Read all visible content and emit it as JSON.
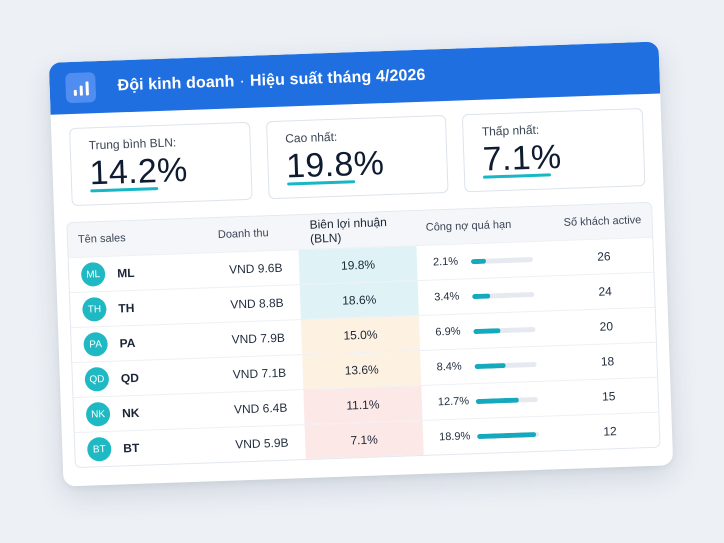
{
  "header": {
    "team": "Đội kinh doanh",
    "separator": "·",
    "period": "Hiệu suất tháng 4/2026",
    "icon": "bar-chart-icon"
  },
  "stats": [
    {
      "label": "Trung bình BLN:",
      "value": "14.2%"
    },
    {
      "label": "Cao nhất:",
      "value": "19.8%"
    },
    {
      "label": "Thấp nhất:",
      "value": "7.1%"
    }
  ],
  "table": {
    "columns": [
      "Tên sales",
      "Doanh thu",
      "Biên lợi nhuận (BLN)",
      "Công nợ quá hạn",
      "Số khách active"
    ],
    "rows": [
      {
        "initials": "ML",
        "name": "ML",
        "revenue": "VND 9.6B",
        "margin": "19.8%",
        "margin_bg": "#dff3f6",
        "overdue": "2.1%",
        "overdue_pct": 2.1,
        "customers": "26"
      },
      {
        "initials": "TH",
        "name": "TH",
        "revenue": "VND 8.8B",
        "margin": "18.6%",
        "margin_bg": "#dff3f6",
        "overdue": "3.4%",
        "overdue_pct": 3.4,
        "customers": "24"
      },
      {
        "initials": "PA",
        "name": "PA",
        "revenue": "VND 7.9B",
        "margin": "15.0%",
        "margin_bg": "#fdf1e1",
        "overdue": "6.9%",
        "overdue_pct": 6.9,
        "customers": "20"
      },
      {
        "initials": "QD",
        "name": "QD",
        "revenue": "VND 7.1B",
        "margin": "13.6%",
        "margin_bg": "#fdf1e1",
        "overdue": "8.4%",
        "overdue_pct": 8.4,
        "customers": "18"
      },
      {
        "initials": "NK",
        "name": "NK",
        "revenue": "VND 6.4B",
        "margin": "11.1%",
        "margin_bg": "#fde8e8",
        "overdue": "12.7%",
        "overdue_pct": 12.7,
        "customers": "15"
      },
      {
        "initials": "BT",
        "name": "BT",
        "revenue": "VND 5.9B",
        "margin": "7.1%",
        "margin_bg": "#fde8e8",
        "overdue": "18.9%",
        "overdue_pct": 18.9,
        "customers": "12"
      }
    ],
    "overdue_scale_max": 20
  },
  "colors": {
    "header": "#1f6fe0",
    "accent": "#18b7c6",
    "bar": "#15a9bd"
  }
}
